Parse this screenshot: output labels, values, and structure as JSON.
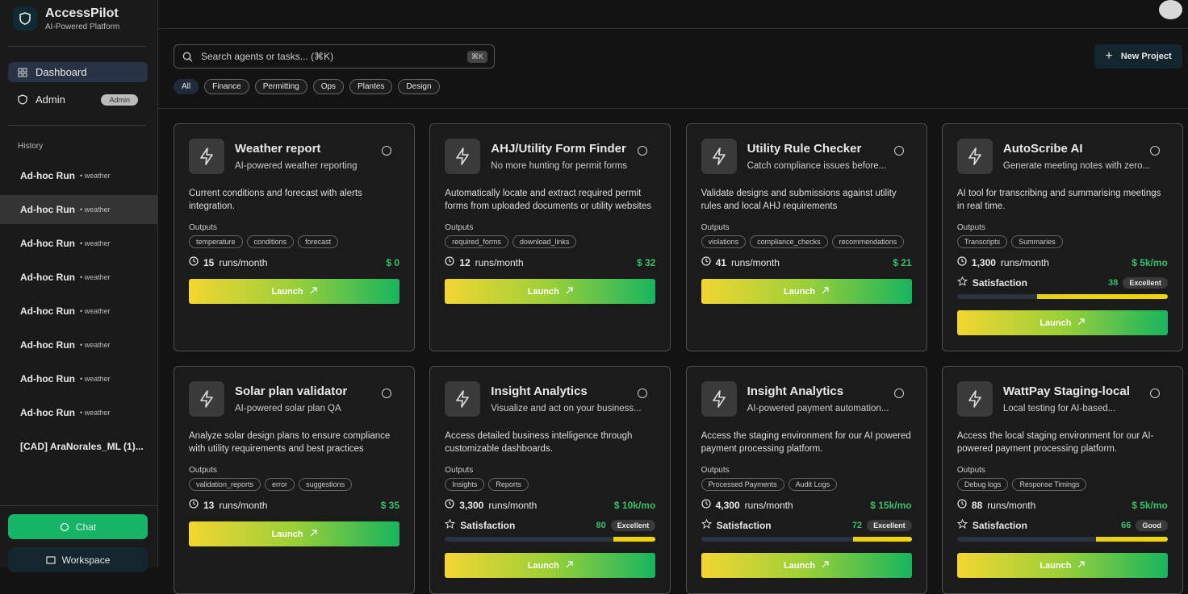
{
  "sidebar": {
    "brand": {
      "name": "AccessPilot",
      "tagline": "AI-Powered Platform"
    },
    "nav": [
      {
        "label": "Dashboard"
      },
      {
        "label": "Admin",
        "badge": "Admin"
      }
    ],
    "history_title": "History",
    "history": [
      {
        "title": "Ad-hoc Run",
        "tag": "weather"
      },
      {
        "title": "Ad-hoc Run",
        "tag": "weather"
      },
      {
        "title": "Ad-hoc Run",
        "tag": "weather"
      },
      {
        "title": "Ad-hoc Run",
        "tag": "weather"
      },
      {
        "title": "Ad-hoc Run",
        "tag": "weather"
      },
      {
        "title": "Ad-hoc Run",
        "tag": "weather"
      },
      {
        "title": "Ad-hoc Run",
        "tag": "weather"
      },
      {
        "title": "Ad-hoc Run",
        "tag": "weather"
      },
      {
        "title": "[CAD] AraNorales_ML (1)..."
      }
    ],
    "chat": "Chat",
    "workspace": "Workspace"
  },
  "toolbar": {
    "search": "Search agents or tasks... (⌘K)",
    "shortcut": "⌘K",
    "filters": [
      "All",
      "Finance",
      "Permitting",
      "Ops",
      "Plantes",
      "Design"
    ],
    "new_project": "New Project"
  },
  "cards": [
    {
      "title": "Weather report",
      "subtitle": "AI-powered weather reporting",
      "description": "Current conditions and forecast with alerts integration.",
      "outputs_label": "Outputs",
      "outputs": [
        "temperature",
        "conditions",
        "forecast"
      ],
      "runs": "15",
      "runs_unit": "runs/month",
      "cost": "$ 0",
      "launch": "Launch"
    },
    {
      "title": "AHJ/Utility Form Finder",
      "subtitle": "No more hunting for permit forms",
      "description": "Automatically locate and extract required permit forms from uploaded documents or utility websites",
      "outputs_label": "Outputs",
      "outputs": [
        "required_forms",
        "download_links"
      ],
      "runs": "12",
      "runs_unit": "runs/month",
      "cost": "$ 32",
      "launch": "Launch"
    },
    {
      "title": "Utility Rule Checker",
      "subtitle": "Catch compliance issues before...",
      "description": "Validate designs and submissions against utility rules and local AHJ requirements",
      "outputs_label": "Outputs",
      "outputs": [
        "violations",
        "compliance_checks",
        "recommendations"
      ],
      "runs": "41",
      "runs_unit": "runs/month",
      "cost": "$ 21",
      "launch": "Launch"
    },
    {
      "title": "AutoScribe AI",
      "subtitle": "Generate meeting notes with zero...",
      "description": "AI tool for transcribing and summarising meetings in real time.",
      "outputs_label": "Outputs",
      "outputs": [
        "Transcripts",
        "Summaries"
      ],
      "runs": "1,300",
      "runs_unit": "runs/month",
      "cost": "$ 5k/mo",
      "satisfaction_label": "Satisfaction",
      "score": 38,
      "rating": "Excellent",
      "launch": "Launch"
    },
    {
      "title": "Solar plan validator",
      "subtitle": "AI-powered solar plan QA",
      "description": "Analyze solar design plans to ensure compliance with utility requirements and best practices",
      "outputs_label": "Outputs",
      "outputs": [
        "validation_reports",
        "error",
        "suggestions"
      ],
      "runs": "13",
      "runs_unit": "runs/month",
      "cost": "$ 35",
      "launch": "Launch"
    },
    {
      "title": "Insight Analytics",
      "subtitle": "Visualize and act on your business...",
      "description": "Access detailed business intelligence through customizable dashboards.",
      "outputs_label": "Outputs",
      "outputs": [
        "Insights",
        "Reports"
      ],
      "runs": "3,300",
      "runs_unit": "runs/month",
      "cost": "$ 10k/mo",
      "satisfaction_label": "Satisfaction",
      "score": 80,
      "rating": "Excellent",
      "launch": "Launch"
    },
    {
      "title": "Insight Analytics",
      "subtitle": "AI-powered payment automation...",
      "description": "Access the staging environment for our AI powered payment processing platform.",
      "outputs_label": "Outputs",
      "outputs": [
        "Processed Payments",
        "Audit Logs"
      ],
      "runs": "4,300",
      "runs_unit": "runs/month",
      "cost": "$ 15k/mo",
      "satisfaction_label": "Satisfaction",
      "score": 72,
      "rating": "Excellent",
      "launch": "Launch"
    },
    {
      "title": "WattPay Staging-local",
      "subtitle": "Local testing for AI-based...",
      "description": "Access the local staging environment for our AI-powered payment processing platform.",
      "outputs_label": "Outputs",
      "outputs": [
        "Debug logs",
        "Response Timings"
      ],
      "runs": "88",
      "runs_unit": "runs/month",
      "cost": "$ 5k/mo",
      "satisfaction_label": "Satisfaction",
      "score": 66,
      "rating": "Good",
      "launch": "Launch"
    }
  ]
}
